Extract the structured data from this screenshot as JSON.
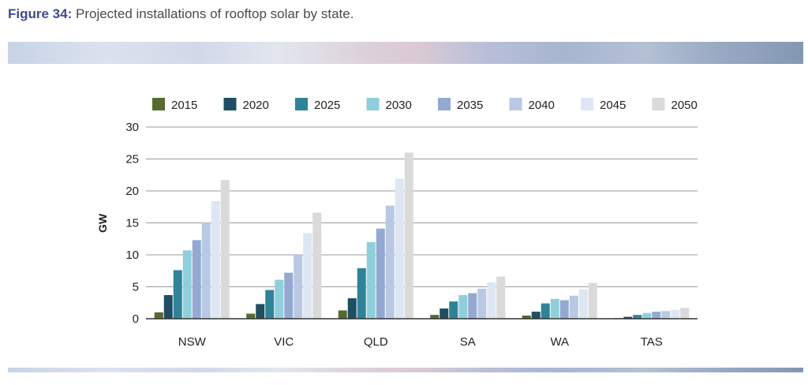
{
  "caption": {
    "label": "Figure 34:",
    "text": "Projected installations of rooftop solar by state."
  },
  "chart_data": {
    "type": "bar",
    "title": "",
    "xlabel": "",
    "ylabel": "GW",
    "ylim": [
      0,
      30
    ],
    "yticks": [
      "0",
      "5",
      "10",
      "15",
      "20",
      "25",
      "30"
    ],
    "grid": true,
    "legend_position": "top",
    "categories": [
      "NSW",
      "VIC",
      "QLD",
      "SA",
      "WA",
      "TAS"
    ],
    "series": [
      {
        "name": "2015",
        "color": "#556b2f",
        "values": [
          1.0,
          0.8,
          1.3,
          0.6,
          0.5,
          0.1
        ]
      },
      {
        "name": "2020",
        "color": "#1f4e63",
        "values": [
          3.7,
          2.3,
          3.2,
          1.6,
          1.1,
          0.3
        ]
      },
      {
        "name": "2025",
        "color": "#2f8399",
        "values": [
          7.6,
          4.5,
          7.9,
          2.7,
          2.4,
          0.6
        ]
      },
      {
        "name": "2030",
        "color": "#8fcfdc",
        "values": [
          10.7,
          6.1,
          12.0,
          3.7,
          3.1,
          0.9
        ]
      },
      {
        "name": "2035",
        "color": "#94a9d2",
        "values": [
          12.3,
          7.2,
          14.1,
          4.0,
          2.9,
          1.1
        ]
      },
      {
        "name": "2040",
        "color": "#b9c8e3",
        "values": [
          15.1,
          10.1,
          17.7,
          4.7,
          3.6,
          1.2
        ]
      },
      {
        "name": "2045",
        "color": "#dde6f2",
        "values": [
          18.4,
          13.4,
          21.9,
          5.7,
          4.6,
          1.4
        ]
      },
      {
        "name": "2050",
        "color": "#dadada",
        "values": [
          21.7,
          16.6,
          26.0,
          6.6,
          5.6,
          1.7
        ]
      }
    ]
  }
}
